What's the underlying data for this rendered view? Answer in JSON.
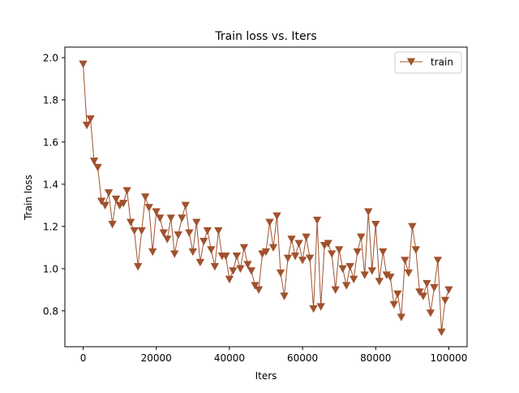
{
  "chart_data": {
    "type": "line",
    "title": "Train loss  vs. Iters",
    "xlabel": "Iters",
    "ylabel": "Train loss",
    "xlim": [
      -5000,
      105000
    ],
    "ylim": [
      0.63,
      2.05
    ],
    "xticks": [
      0,
      20000,
      40000,
      60000,
      80000,
      100000
    ],
    "xtick_labels": [
      "0",
      "20000",
      "40000",
      "60000",
      "80000",
      "100000"
    ],
    "yticks": [
      0.8,
      1.0,
      1.2,
      1.4,
      1.6,
      1.8,
      2.0
    ],
    "ytick_labels": [
      "0.8",
      "1.0",
      "1.2",
      "1.4",
      "1.6",
      "1.8",
      "2.0"
    ],
    "grid": false,
    "legend": {
      "placement": "top-right",
      "entries": [
        "train"
      ]
    },
    "series": [
      {
        "name": "train",
        "color": "#a0522d",
        "marker": "triangle-down",
        "x": [
          0,
          1000,
          2000,
          3000,
          4000,
          5000,
          6000,
          7000,
          8000,
          9000,
          10000,
          11000,
          12000,
          13000,
          14000,
          15000,
          16000,
          17000,
          18000,
          19000,
          20000,
          21000,
          22000,
          23000,
          24000,
          25000,
          26000,
          27000,
          28000,
          29000,
          30000,
          31000,
          32000,
          33000,
          34000,
          35000,
          36000,
          37000,
          38000,
          39000,
          40000,
          41000,
          42000,
          43000,
          44000,
          45000,
          46000,
          47000,
          48000,
          49000,
          50000,
          51000,
          52000,
          53000,
          54000,
          55000,
          56000,
          57000,
          58000,
          59000,
          60000,
          61000,
          62000,
          63000,
          64000,
          65000,
          66000,
          67000,
          68000,
          69000,
          70000,
          71000,
          72000,
          73000,
          74000,
          75000,
          76000,
          77000,
          78000,
          79000,
          80000,
          81000,
          82000,
          83000,
          84000,
          85000,
          86000,
          87000,
          88000,
          89000,
          90000,
          91000,
          92000,
          93000,
          94000,
          95000,
          96000,
          97000,
          98000,
          99000,
          100000
        ],
        "y": [
          1.97,
          1.68,
          1.71,
          1.51,
          1.48,
          1.32,
          1.3,
          1.36,
          1.21,
          1.33,
          1.3,
          1.31,
          1.37,
          1.22,
          1.18,
          1.01,
          1.18,
          1.34,
          1.29,
          1.08,
          1.27,
          1.24,
          1.17,
          1.14,
          1.24,
          1.07,
          1.16,
          1.24,
          1.3,
          1.17,
          1.08,
          1.22,
          1.03,
          1.13,
          1.18,
          1.09,
          1.01,
          1.18,
          1.06,
          1.06,
          0.95,
          0.99,
          1.06,
          1.0,
          1.1,
          1.02,
          0.99,
          0.92,
          0.9,
          1.07,
          1.08,
          1.22,
          1.1,
          1.25,
          0.98,
          0.87,
          1.05,
          1.14,
          1.06,
          1.12,
          1.04,
          1.15,
          1.05,
          0.81,
          1.23,
          0.82,
          1.11,
          1.12,
          1.07,
          0.9,
          1.09,
          1.0,
          0.92,
          1.01,
          0.95,
          1.08,
          1.15,
          0.97,
          1.27,
          0.99,
          1.21,
          0.94,
          1.08,
          0.97,
          0.96,
          0.83,
          0.88,
          0.77,
          1.04,
          0.98,
          1.2,
          1.09,
          0.89,
          0.87,
          0.93,
          0.79,
          0.91,
          1.04,
          0.7,
          0.85,
          0.9
        ]
      }
    ]
  }
}
